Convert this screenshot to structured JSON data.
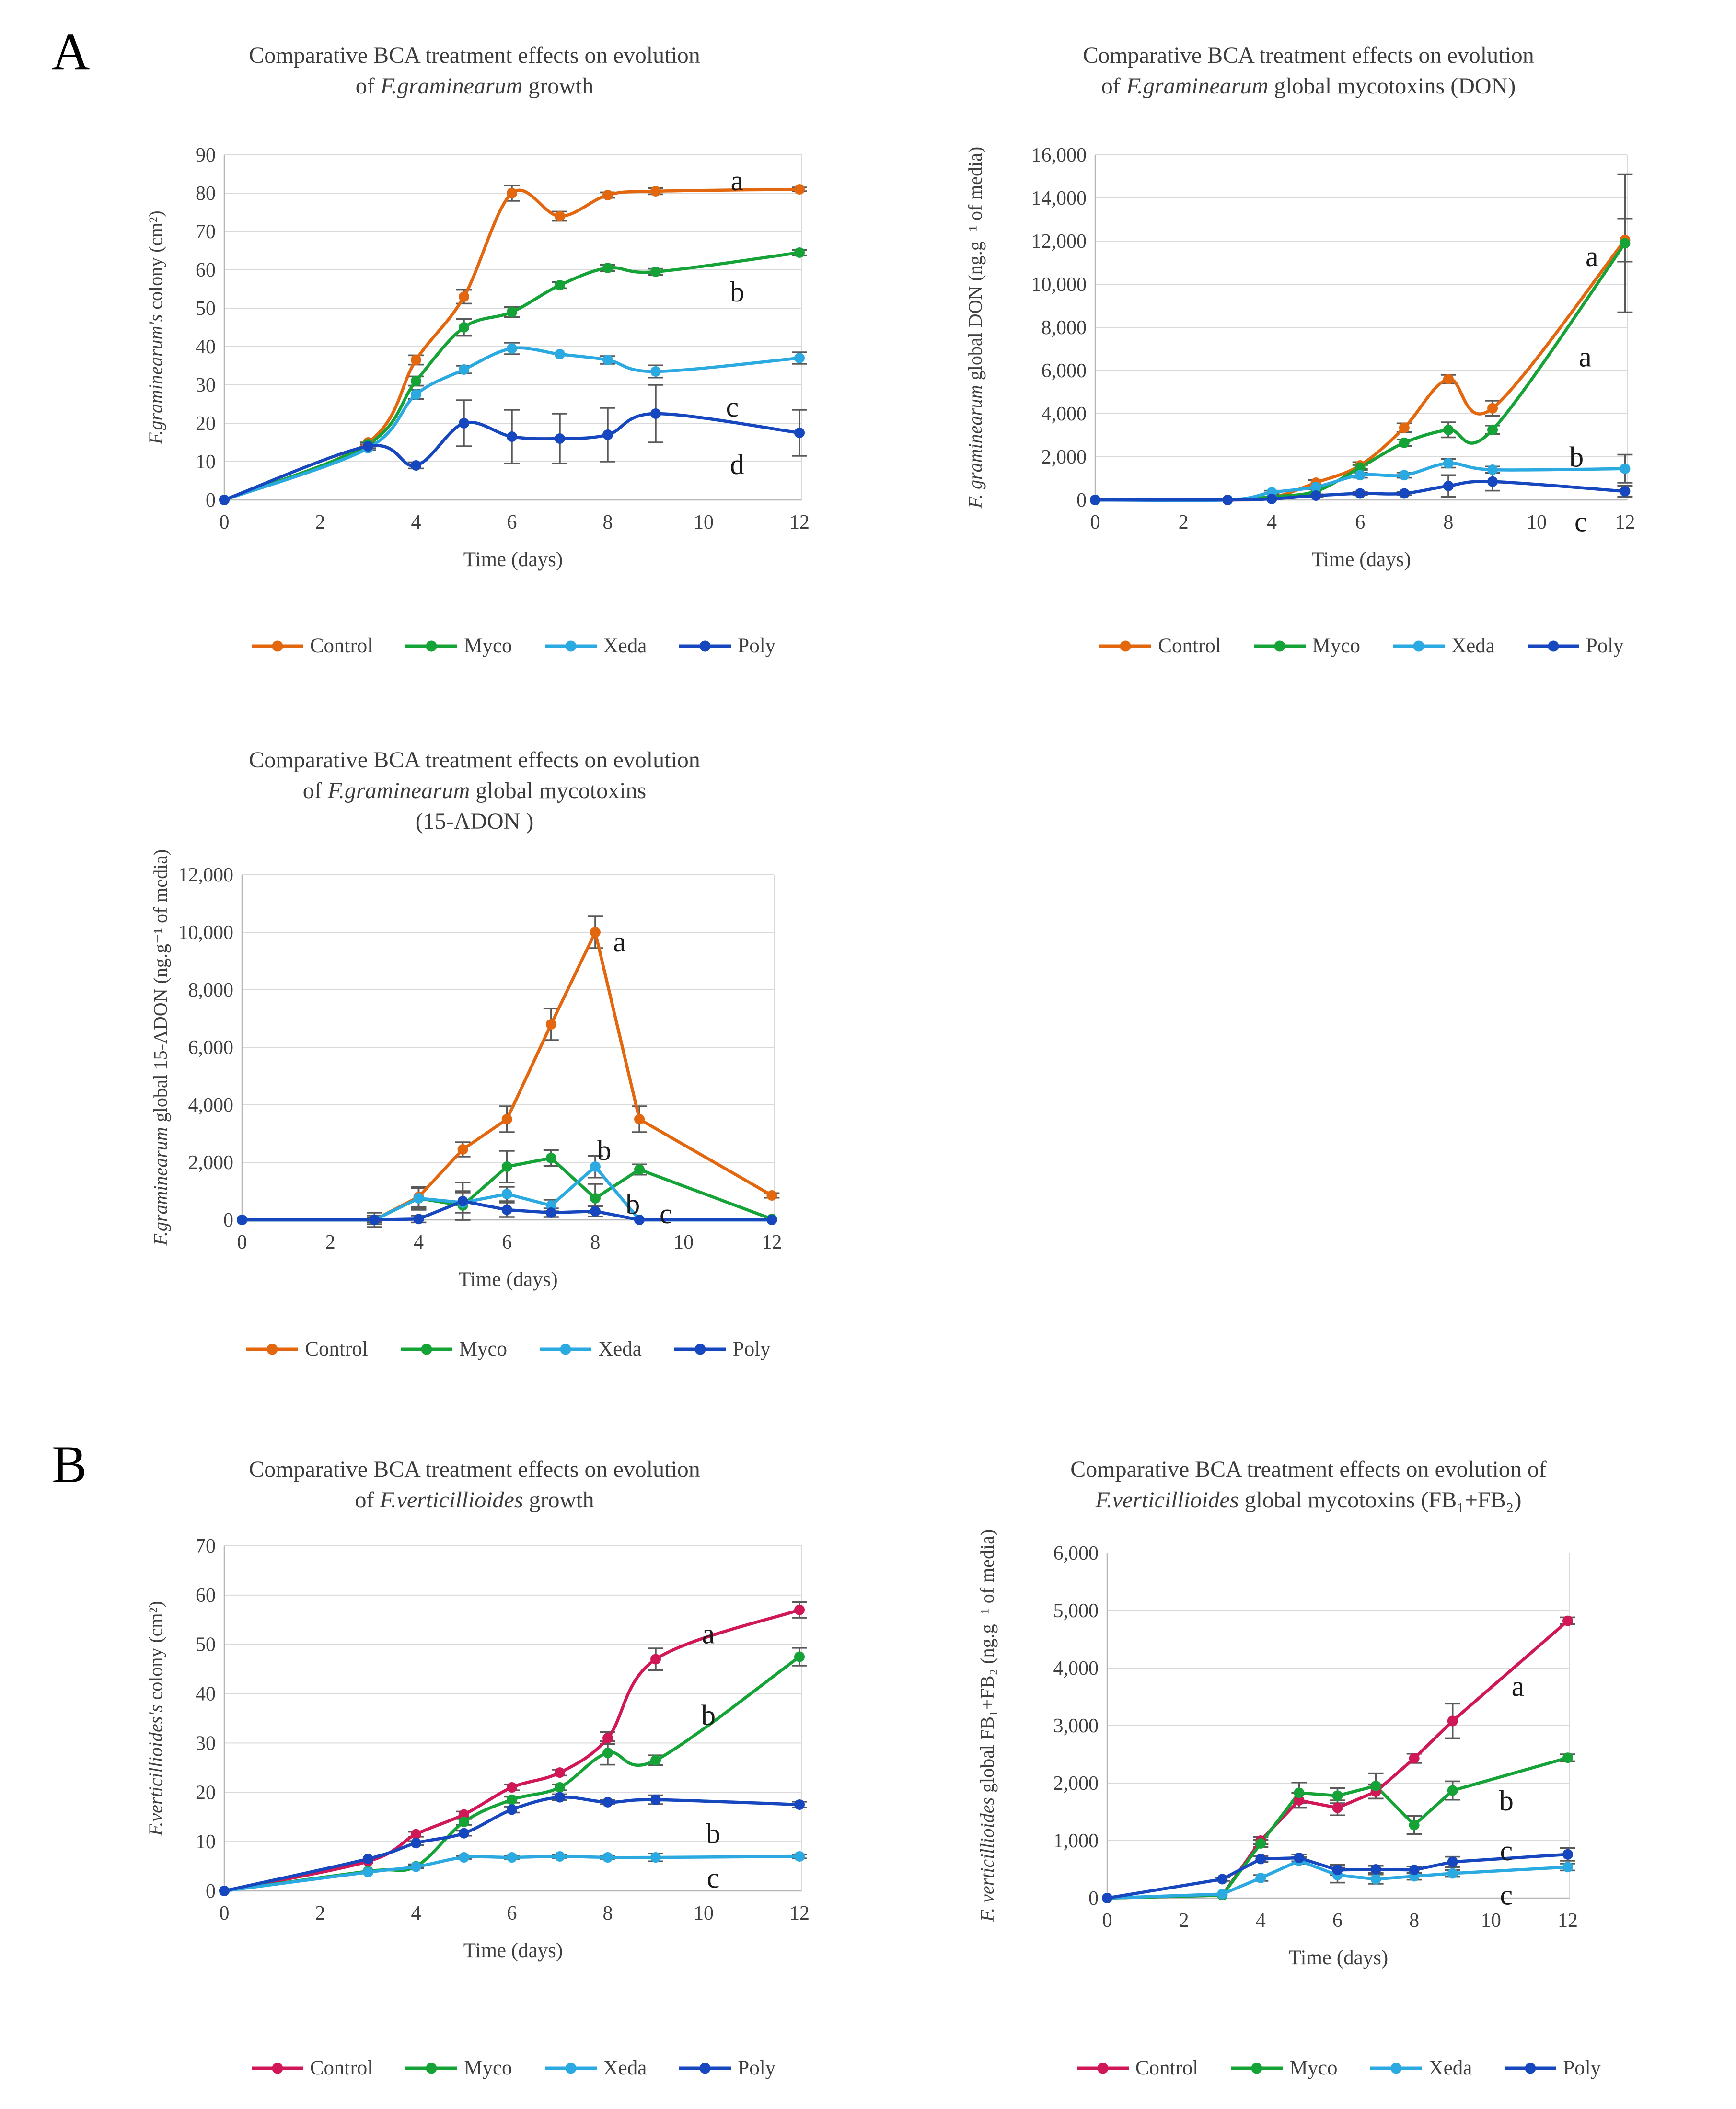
{
  "panels": [
    {
      "label": "A"
    },
    {
      "label": "B"
    }
  ],
  "colors": {
    "control_orange": "#E3670E",
    "control_pink": "#D01758",
    "myco_green": "#15A337",
    "xeda_lightblue": "#2BA9E1",
    "poly_blue": "#1747BE",
    "error_bar_gray": "#595959",
    "gridline_gray": "#D9D9D9",
    "axis_gray": "#B7B7B7",
    "text_gray": "#3F3F3F"
  },
  "chart_data": [
    {
      "type": "line",
      "line_style": "smooth",
      "grid": true,
      "legend_position": "bottom",
      "title_lines": [
        [
          {
            "t": "Comparative BCA treatment effects on evolution"
          }
        ],
        [
          {
            "t": "of "
          },
          {
            "t": "F.graminearum",
            "i": true
          },
          {
            "t": " growth"
          }
        ]
      ],
      "ylabel": [
        {
          "t": "F.graminearum's",
          "i": true
        },
        {
          "t": " colony (cm²)"
        }
      ],
      "xlabel": "Time (days)",
      "ylim": [
        0,
        90
      ],
      "ystep": 10,
      "xlim": [
        0,
        12.05
      ],
      "xticks": [
        0,
        2,
        4,
        6,
        8,
        10,
        12
      ],
      "x": [
        0,
        3,
        4,
        5,
        6,
        7,
        8,
        9,
        12
      ],
      "series": [
        {
          "name": "Control",
          "color": "#E3670E",
          "values": [
            0,
            15,
            36.5,
            53,
            80,
            74,
            79.5,
            80.5,
            81
          ],
          "errors": [
            0,
            0,
            1.2,
            1.8,
            2,
            1.2,
            0.7,
            0.8,
            0.5
          ]
        },
        {
          "name": "Myco",
          "color": "#15A337",
          "values": [
            0,
            14.5,
            31,
            45,
            49,
            56,
            60.5,
            59.5,
            64.5
          ],
          "errors": [
            0,
            0.5,
            1.2,
            2.2,
            1.3,
            0.8,
            0.8,
            0.8,
            0.7
          ]
        },
        {
          "name": "Xeda",
          "color": "#2BA9E1",
          "values": [
            0,
            13.5,
            27.5,
            34,
            39.5,
            38,
            36.5,
            33.5,
            37
          ],
          "errors": [
            0,
            0.5,
            1.2,
            1,
            1.5,
            0,
            1,
            1.6,
            1.5
          ]
        },
        {
          "name": "Poly",
          "color": "#1747BE",
          "values": [
            0,
            14,
            9,
            20,
            16.5,
            16,
            17,
            22.5,
            17.5
          ],
          "errors": [
            0,
            0.5,
            0.8,
            6,
            7,
            6.5,
            7,
            7.5,
            6
          ]
        }
      ],
      "annotations": [
        {
          "x": 10.7,
          "y": 85,
          "text": "a"
        },
        {
          "x": 10.7,
          "y": 56,
          "text": "b"
        },
        {
          "x": 10.6,
          "y": 26,
          "text": "c"
        },
        {
          "x": 10.7,
          "y": 11,
          "text": "d"
        }
      ]
    },
    {
      "type": "line",
      "line_style": "smooth",
      "grid": true,
      "legend_position": "bottom",
      "title_lines": [
        [
          {
            "t": "Comparative BCA treatment effects on evolution"
          }
        ],
        [
          {
            "t": "of "
          },
          {
            "t": "F.graminearum",
            "i": true
          },
          {
            "t": " global mycotoxins (DON)"
          }
        ]
      ],
      "ylabel": [
        {
          "t": "F. graminearum",
          "i": true
        },
        {
          "t": " global DON  (ng.g⁻¹ of media)"
        }
      ],
      "xlabel": "Time (days)",
      "ylim": [
        0,
        16000
      ],
      "ystep": 2000,
      "xlim": [
        0,
        12.05
      ],
      "xticks": [
        0,
        2,
        4,
        6,
        8,
        10,
        12
      ],
      "x": [
        0,
        3,
        4,
        5,
        6,
        7,
        8,
        9,
        12
      ],
      "series": [
        {
          "name": "Control",
          "color": "#E3670E",
          "values": [
            0,
            0,
            100,
            800,
            1600,
            3350,
            5600,
            4250,
            12050
          ],
          "errors": [
            0,
            0,
            0,
            120,
            150,
            200,
            200,
            350,
            1000
          ]
        },
        {
          "name": "Myco",
          "color": "#15A337",
          "values": [
            0,
            0,
            150,
            400,
            1500,
            2650,
            3250,
            3250,
            11900
          ],
          "errors": [
            0,
            0,
            0,
            0,
            120,
            150,
            350,
            200,
            3200
          ]
        },
        {
          "name": "Xeda",
          "color": "#2BA9E1",
          "values": [
            0,
            0,
            350,
            600,
            1150,
            1150,
            1700,
            1400,
            1450
          ],
          "errors": [
            0,
            0,
            80,
            100,
            120,
            120,
            200,
            150,
            650
          ]
        },
        {
          "name": "Poly",
          "color": "#1747BE",
          "values": [
            0,
            0,
            50,
            200,
            300,
            300,
            650,
            850,
            400
          ],
          "errors": [
            0,
            0,
            0,
            60,
            80,
            80,
            500,
            420,
            250
          ]
        }
      ],
      "annotations": [
        {
          "x": 11.25,
          "y": 11600,
          "text": "a"
        },
        {
          "x": 11.1,
          "y": 6950,
          "text": "a"
        },
        {
          "x": 10.9,
          "y": 2300,
          "text": "b"
        },
        {
          "x": 11.0,
          "y": -700,
          "text": "c"
        }
      ]
    },
    {
      "type": "line",
      "line_style": "straight",
      "grid": true,
      "legend_position": "bottom",
      "title_lines": [
        [
          {
            "t": "Comparative BCA treatment effects on evolution"
          }
        ],
        [
          {
            "t": "of "
          },
          {
            "t": "F.graminearum",
            "i": true
          },
          {
            "t": " global mycotoxins"
          }
        ],
        [
          {
            "t": "(15-ADON )"
          }
        ]
      ],
      "ylabel": [
        {
          "t": "F.graminearum",
          "i": true
        },
        {
          "t": " global 15-ADON (ng.g⁻¹ of media)"
        }
      ],
      "xlabel": "Time (days)",
      "ylim": [
        0,
        12000
      ],
      "ystep": 2000,
      "xlim": [
        0,
        12.05
      ],
      "xticks": [
        0,
        2,
        4,
        6,
        8,
        10,
        12
      ],
      "x": [
        0,
        3,
        4,
        5,
        6,
        7,
        8,
        9,
        12
      ],
      "series": [
        {
          "name": "Control",
          "color": "#E3670E",
          "values": [
            0,
            0,
            800,
            2450,
            3500,
            6800,
            10000,
            3500,
            850
          ],
          "errors": [
            0,
            250,
            350,
            250,
            450,
            550,
            550,
            450,
            80
          ]
        },
        {
          "name": "Myco",
          "color": "#15A337",
          "values": [
            0,
            0,
            750,
            500,
            1850,
            2150,
            750,
            1750,
            30
          ],
          "errors": [
            0,
            0,
            400,
            500,
            550,
            280,
            500,
            180,
            0
          ]
        },
        {
          "name": "Xeda",
          "color": "#2BA9E1",
          "values": [
            0,
            0,
            750,
            600,
            900,
            500,
            1850,
            0,
            0
          ],
          "errors": [
            0,
            150,
            350,
            350,
            250,
            200,
            380,
            0,
            0
          ]
        },
        {
          "name": "Poly",
          "color": "#1747BE",
          "values": [
            0,
            0,
            30,
            650,
            350,
            250,
            300,
            0,
            0
          ],
          "errors": [
            0,
            80,
            120,
            650,
            250,
            150,
            180,
            0,
            0
          ]
        }
      ],
      "annotations": [
        {
          "x": 8.55,
          "y": 9900,
          "text": "a"
        },
        {
          "x": 8.2,
          "y": 2650,
          "text": "b"
        },
        {
          "x": 8.85,
          "y": 780,
          "text": "b"
        },
        {
          "x": 9.6,
          "y": 450,
          "text": "c"
        }
      ]
    },
    {
      "type": "line",
      "line_style": "smooth",
      "grid": true,
      "legend_position": "bottom",
      "title_lines": [
        [
          {
            "t": "Comparative BCA treatment effects on evolution"
          }
        ],
        [
          {
            "t": "of "
          },
          {
            "t": "F.verticillioides",
            "i": true
          },
          {
            "t": " growth"
          }
        ]
      ],
      "ylabel": [
        {
          "t": "F.verticillioides's",
          "i": true
        },
        {
          "t": " colony (cm²)"
        }
      ],
      "xlabel": "Time (days)",
      "ylim": [
        0,
        70
      ],
      "ystep": 10,
      "xlim": [
        0,
        12.05
      ],
      "xticks": [
        0,
        2,
        4,
        6,
        8,
        10,
        12
      ],
      "x": [
        0,
        3,
        4,
        5,
        6,
        7,
        8,
        9,
        12
      ],
      "series": [
        {
          "name": "Control",
          "color": "#D01758",
          "values": [
            0,
            6,
            11.5,
            15.5,
            21,
            24,
            31,
            47,
            57
          ],
          "errors": [
            0,
            0,
            0.5,
            0.6,
            0.6,
            0.6,
            1.2,
            2.2,
            1.6
          ]
        },
        {
          "name": "Myco",
          "color": "#15A337",
          "values": [
            0,
            4,
            5,
            14,
            18.5,
            21,
            28,
            26.5,
            47.5
          ],
          "errors": [
            0,
            0,
            0.4,
            0.6,
            0.6,
            0.6,
            2.4,
            1,
            1.8
          ]
        },
        {
          "name": "Xeda",
          "color": "#2BA9E1",
          "values": [
            0,
            3.8,
            4.9,
            6.8,
            6.8,
            7,
            6.8,
            6.8,
            7
          ],
          "errors": [
            0,
            0,
            0.3,
            0.3,
            0.3,
            0.3,
            0.3,
            0.8,
            0.4
          ]
        },
        {
          "name": "Poly",
          "color": "#1747BE",
          "values": [
            0,
            6.5,
            9.7,
            11.7,
            16.5,
            19,
            18,
            18.5,
            17.5
          ],
          "errors": [
            0,
            0,
            0.4,
            0.5,
            0.6,
            0.6,
            0.4,
            0.9,
            0.6
          ]
        }
      ],
      "annotations": [
        {
          "x": 10.1,
          "y": 53.5,
          "text": "a"
        },
        {
          "x": 10.1,
          "y": 37,
          "text": "b"
        },
        {
          "x": 10.2,
          "y": 13,
          "text": "b"
        },
        {
          "x": 10.2,
          "y": 4,
          "text": "c"
        }
      ]
    },
    {
      "type": "line",
      "line_style": "straight",
      "grid": true,
      "legend_position": "bottom",
      "title_lines": [
        [
          {
            "t": "Comparative BCA treatment effects on evolution of"
          }
        ],
        [
          {
            "t": "F.verticillioides",
            "i": true
          },
          {
            "t": " global mycotoxins (FB₁+FB₂)"
          }
        ]
      ],
      "ylabel": [
        {
          "t": "F. verticillioides",
          "i": true
        },
        {
          "t": " global FB₁+FB₂ (ng.g⁻¹ of media)"
        }
      ],
      "xlabel": "Time (days)",
      "ylim": [
        0,
        6000
      ],
      "ystep": 1000,
      "xlim": [
        0,
        12.05
      ],
      "xticks": [
        0,
        2,
        4,
        6,
        8,
        10,
        12
      ],
      "x": [
        0,
        3,
        4,
        5,
        6,
        7,
        8,
        9,
        12
      ],
      "series": [
        {
          "name": "Control",
          "color": "#D01758",
          "values": [
            0,
            50,
            1000,
            1700,
            1570,
            1850,
            2430,
            3080,
            4820
          ],
          "errors": [
            0,
            0,
            60,
            130,
            130,
            120,
            80,
            300,
            60
          ]
        },
        {
          "name": "Myco",
          "color": "#15A337",
          "values": [
            0,
            50,
            950,
            1830,
            1780,
            1950,
            1270,
            1870,
            2440
          ],
          "errors": [
            0,
            0,
            60,
            180,
            130,
            220,
            160,
            160,
            60
          ]
        },
        {
          "name": "Xeda",
          "color": "#2BA9E1",
          "values": [
            0,
            70,
            350,
            650,
            400,
            330,
            380,
            430,
            540
          ],
          "errors": [
            0,
            0,
            50,
            60,
            130,
            80,
            60,
            60,
            60
          ]
        },
        {
          "name": "Poly",
          "color": "#1747BE",
          "values": [
            0,
            330,
            680,
            700,
            490,
            500,
            490,
            630,
            760
          ],
          "errors": [
            0,
            30,
            50,
            60,
            90,
            60,
            60,
            90,
            110
          ]
        }
      ],
      "annotations": [
        {
          "x": 10.7,
          "y": 3800,
          "text": "a"
        },
        {
          "x": 10.4,
          "y": 1810,
          "text": "b"
        },
        {
          "x": 10.4,
          "y": 940,
          "text": "c"
        },
        {
          "x": 10.4,
          "y": 170,
          "text": "c"
        }
      ]
    }
  ]
}
